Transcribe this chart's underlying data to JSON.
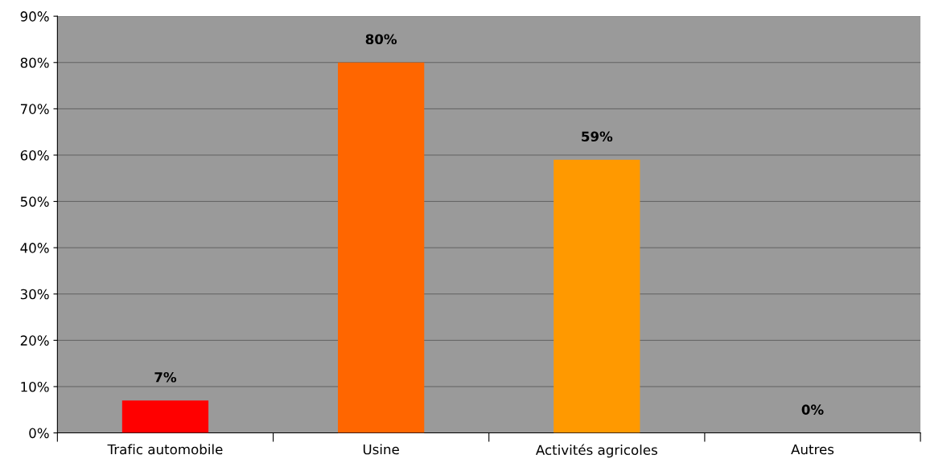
{
  "chart_data": {
    "type": "bar",
    "categories": [
      "Trafic automobile",
      "Usine",
      "Activités agricoles",
      "Autres"
    ],
    "values": [
      7,
      80,
      59,
      0
    ],
    "colors": [
      "#ff0000",
      "#ff6600",
      "#ff9900",
      "#ff9900"
    ],
    "value_labels": [
      "7%",
      "80%",
      "59%",
      "0%"
    ],
    "ylim": [
      0,
      90
    ],
    "yticks": [
      {
        "value": 0,
        "label": "0%"
      },
      {
        "value": 10,
        "label": "10%"
      },
      {
        "value": 20,
        "label": "20%"
      },
      {
        "value": 30,
        "label": "30%"
      },
      {
        "value": 40,
        "label": "40%"
      },
      {
        "value": 50,
        "label": "50%"
      },
      {
        "value": 60,
        "label": "60%"
      },
      {
        "value": 70,
        "label": "70%"
      },
      {
        "value": 80,
        "label": "80%"
      },
      {
        "value": 90,
        "label": "90%"
      }
    ],
    "grid": "y"
  }
}
